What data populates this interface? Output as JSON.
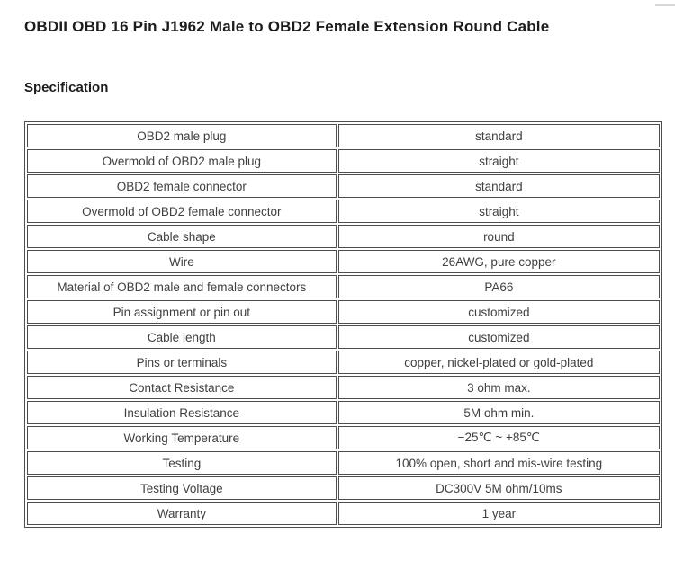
{
  "page": {
    "title": "OBDII OBD 16 Pin J1962 Male to OBD2 Female Extension Round Cable",
    "section_heading": "Specification"
  },
  "colors": {
    "title_text": "#1c1c1c",
    "table_text": "#404040",
    "table_border": "#4d4d4d",
    "corner_dash": "#d8d8d8",
    "background": "#ffffff"
  },
  "spec_table": {
    "rows": [
      {
        "label": "OBD2 male plug",
        "value": "standard"
      },
      {
        "label": "Overmold of OBD2 male plug",
        "value": "straight"
      },
      {
        "label": "OBD2 female connector",
        "value": "standard"
      },
      {
        "label": "Overmold of OBD2 female connector",
        "value": "straight"
      },
      {
        "label": "Cable shape",
        "value": "round"
      },
      {
        "label": "Wire",
        "value": "26AWG, pure copper"
      },
      {
        "label": "Material of OBD2 male and female connectors",
        "value": "PA66"
      },
      {
        "label": "Pin assignment or pin out",
        "value": "customized"
      },
      {
        "label": "Cable length",
        "value": "customized"
      },
      {
        "label": "Pins or terminals",
        "value": "copper, nickel-plated or gold-plated"
      },
      {
        "label": "Contact Resistance",
        "value": "3 ohm max."
      },
      {
        "label": "Insulation Resistance",
        "value": "5M ohm min."
      },
      {
        "label": "Working Temperature",
        "value": "−25℃ ~ +85℃"
      },
      {
        "label": "Testing",
        "value": "100% open, short and mis-wire testing"
      },
      {
        "label": "Testing Voltage",
        "value": "DC300V 5M ohm/10ms"
      },
      {
        "label": "Warranty",
        "value": "1 year"
      }
    ]
  }
}
